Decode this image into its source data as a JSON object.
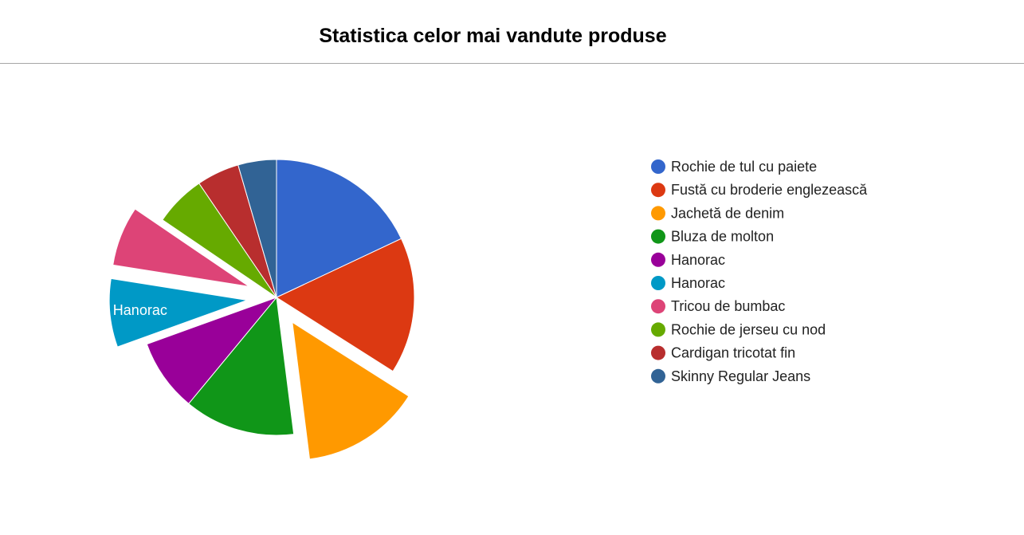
{
  "page": {
    "title": "Statistica celor mai vandute produse"
  },
  "chart_data": {
    "type": "pie",
    "title": "Statistica celor mai vandute produse",
    "legend_position": "right",
    "slices": [
      {
        "label": "Rochie de tul cu paiete",
        "value": 18.0,
        "color": "#3366cc",
        "exploded": false
      },
      {
        "label": "Fustă cu broderie englezească",
        "value": 16.0,
        "color": "#dc3912",
        "exploded": false
      },
      {
        "label": "Jachetă de denim",
        "value": 14.0,
        "color": "#ff9900",
        "exploded": true
      },
      {
        "label": "Bluza de molton",
        "value": 13.0,
        "color": "#109618",
        "exploded": false
      },
      {
        "label": "Hanorac",
        "value": 8.5,
        "color": "#990099",
        "exploded": false
      },
      {
        "label": "Hanorac",
        "value": 8.0,
        "color": "#0099c6",
        "exploded": true,
        "show_label": true
      },
      {
        "label": "Tricou de bumbac",
        "value": 7.0,
        "color": "#dd4477",
        "exploded": true
      },
      {
        "label": "Rochie de jerseu cu nod",
        "value": 6.0,
        "color": "#66aa00",
        "exploded": false
      },
      {
        "label": "Cardigan tricotat fin",
        "value": 5.0,
        "color": "#b82e2e",
        "exploded": false
      },
      {
        "label": "Skinny Regular Jeans",
        "value": 4.5,
        "color": "#316395",
        "exploded": false
      }
    ]
  }
}
